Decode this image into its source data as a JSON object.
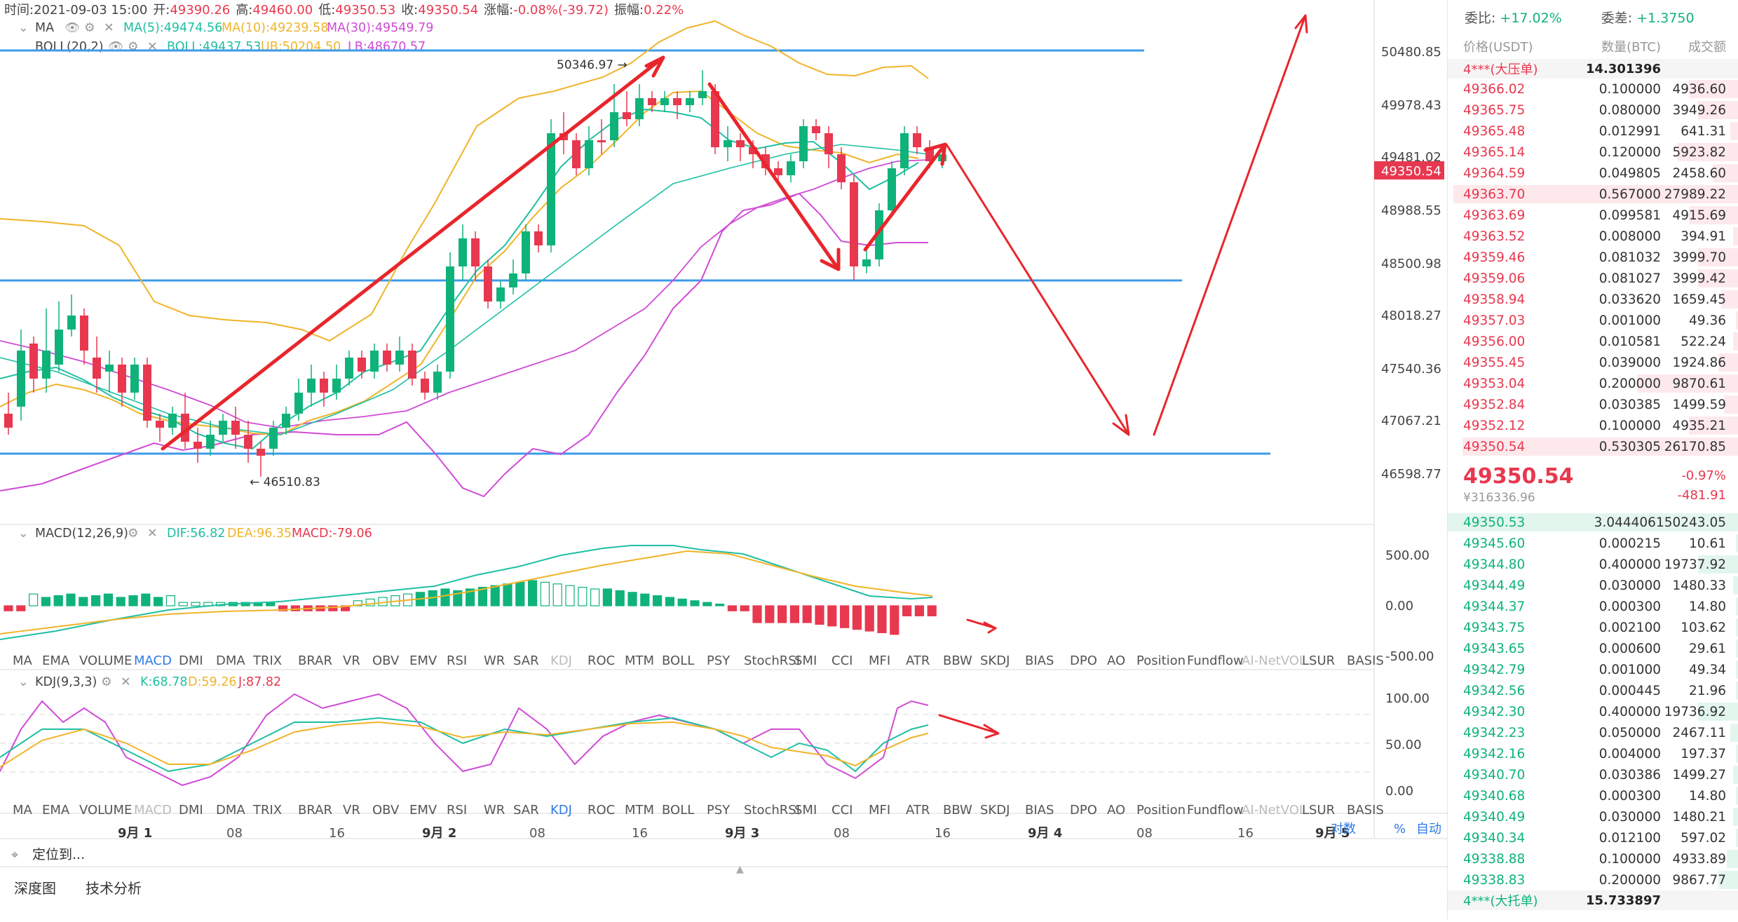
{
  "header": {
    "time_label": "时间:",
    "time": "2021-09-03 15:00",
    "open_label": "开:",
    "open": "49390.26",
    "high_label": "高:",
    "high": "49460.00",
    "low_label": "低:",
    "low": "49350.53",
    "close_label": "收:",
    "close": "49350.54",
    "change_label": "涨幅:",
    "change": "-0.08%(-39.72)",
    "amplitude_label": "振幅:",
    "amplitude": "0.22%"
  },
  "ma_legend": {
    "name": "MA",
    "ma5": "MA(5):49474.56",
    "ma10": "MA(10):49239.58",
    "ma30": "MA(30):49549.79"
  },
  "boll_legend": {
    "name": "BOLL(20,2)",
    "boll": "BOLL:49437.53",
    "ub": "UB:50204.50",
    "lb": "LB:48670.57"
  },
  "macd_legend": {
    "name": "MACD(12,26,9)",
    "dif": "DIF:56.82",
    "dea": "DEA:96.35",
    "macd": "MACD:-79.06"
  },
  "kdj_legend": {
    "name": "KDJ(9,3,3)",
    "k": "K:68.78",
    "d": "D:59.26",
    "j": "J:87.82"
  },
  "annotations": {
    "high_mark": "50346.97",
    "low_mark": "46510.83",
    "current_price_tag": "49350.54",
    "price_tag_partial": "49481.02"
  },
  "price_axis": [
    "50480.85",
    "49978.43",
    "49481.02",
    "48988.55",
    "48500.98",
    "48018.27",
    "47540.36",
    "47067.21",
    "46598.77"
  ],
  "macd_axis": [
    "500.00",
    "0.00",
    "-500.00"
  ],
  "kdj_axis": [
    "100.00",
    "50.00",
    "0.00"
  ],
  "indicators": [
    "MA",
    "EMA",
    "VOLUME",
    "MACD",
    "DMI",
    "DMA",
    "TRIX",
    "BRAR",
    "VR",
    "OBV",
    "EMV",
    "RSI",
    "WR",
    "SAR",
    "KDJ",
    "ROC",
    "MTM",
    "BOLL",
    "PSY",
    "StochRSI",
    "SMI",
    "CCI",
    "MFI",
    "ATR",
    "BBW",
    "SKDJ",
    "BIAS",
    "DPO",
    "AO",
    "Position",
    "Fundflow",
    "AI-NetVOL",
    "LSUR",
    "BASIS"
  ],
  "time_axis": [
    "9月 1",
    "08",
    "16",
    "9月 2",
    "08",
    "16",
    "9月 3",
    "08",
    "16",
    "9月 4",
    "08",
    "16",
    "9月 5"
  ],
  "axis_controls": {
    "log": "对数",
    "pct": "%",
    "auto": "自动"
  },
  "locate": "定位到...",
  "tabs": [
    "深度图",
    "技术分析"
  ],
  "orderbook": {
    "ratio_label": "委比:",
    "ratio": "+17.02%",
    "diff_label": "委差:",
    "diff": "+1.3750",
    "col_price": "价格(USDT)",
    "col_qty": "数量(BTC)",
    "col_total": "成交额",
    "ask_tag": "4***(大压单)",
    "ask_tag_qty": "14.301396",
    "asks": [
      {
        "price": "49366.02",
        "qty": "0.100000",
        "total": "4936.60",
        "depth": 0.17
      },
      {
        "price": "49365.75",
        "qty": "0.080000",
        "total": "3949.26",
        "depth": 0.14
      },
      {
        "price": "49365.48",
        "qty": "0.012991",
        "total": "641.31",
        "depth": 0.03
      },
      {
        "price": "49365.14",
        "qty": "0.120000",
        "total": "5923.82",
        "depth": 0.21
      },
      {
        "price": "49364.59",
        "qty": "0.049805",
        "total": "2458.60",
        "depth": 0.09
      },
      {
        "price": "49363.70",
        "qty": "0.567000",
        "total": "27989.22",
        "depth": 0.98
      },
      {
        "price": "49363.69",
        "qty": "0.099581",
        "total": "4915.69",
        "depth": 0.17
      },
      {
        "price": "49363.52",
        "qty": "0.008000",
        "total": "394.91",
        "depth": 0.02
      },
      {
        "price": "49359.46",
        "qty": "0.081032",
        "total": "3999.70",
        "depth": 0.14
      },
      {
        "price": "49359.06",
        "qty": "0.081027",
        "total": "3999.42",
        "depth": 0.14
      },
      {
        "price": "49358.94",
        "qty": "0.033620",
        "total": "1659.45",
        "depth": 0.06
      },
      {
        "price": "49357.03",
        "qty": "0.001000",
        "total": "49.36",
        "depth": 0.01
      },
      {
        "price": "49356.00",
        "qty": "0.010581",
        "total": "522.24",
        "depth": 0.02
      },
      {
        "price": "49355.45",
        "qty": "0.039000",
        "total": "1924.86",
        "depth": 0.07
      },
      {
        "price": "49353.04",
        "qty": "0.200000",
        "total": "9870.61",
        "depth": 0.35
      },
      {
        "price": "49352.84",
        "qty": "0.030385",
        "total": "1499.59",
        "depth": 0.05
      },
      {
        "price": "49352.12",
        "qty": "0.100000",
        "total": "4935.21",
        "depth": 0.17
      },
      {
        "price": "49350.54",
        "qty": "0.530305",
        "total": "26170.85",
        "depth": 0.95
      }
    ],
    "last_price": "49350.54",
    "last_cny": "¥316336.96",
    "last_pct": "-0.97%",
    "last_chg": "-481.91",
    "bids": [
      {
        "price": "49350.53",
        "qty": "3.044406",
        "total": "150243.05",
        "depth": 1.0
      },
      {
        "price": "49345.60",
        "qty": "0.000215",
        "total": "10.61",
        "depth": 0.01
      },
      {
        "price": "49344.80",
        "qty": "0.400000",
        "total": "19737.92",
        "depth": 0.14
      },
      {
        "price": "49344.49",
        "qty": "0.030000",
        "total": "1480.33",
        "depth": 0.02
      },
      {
        "price": "49344.37",
        "qty": "0.000300",
        "total": "14.80",
        "depth": 0.01
      },
      {
        "price": "49343.75",
        "qty": "0.002100",
        "total": "103.62",
        "depth": 0.01
      },
      {
        "price": "49343.65",
        "qty": "0.000600",
        "total": "29.61",
        "depth": 0.01
      },
      {
        "price": "49342.79",
        "qty": "0.001000",
        "total": "49.34",
        "depth": 0.01
      },
      {
        "price": "49342.56",
        "qty": "0.000445",
        "total": "21.96",
        "depth": 0.01
      },
      {
        "price": "49342.30",
        "qty": "0.400000",
        "total": "19736.92",
        "depth": 0.14
      },
      {
        "price": "49342.23",
        "qty": "0.050000",
        "total": "2467.11",
        "depth": 0.03
      },
      {
        "price": "49342.16",
        "qty": "0.004000",
        "total": "197.37",
        "depth": 0.01
      },
      {
        "price": "49340.70",
        "qty": "0.030386",
        "total": "1499.27",
        "depth": 0.02
      },
      {
        "price": "49340.68",
        "qty": "0.000300",
        "total": "14.80",
        "depth": 0.01
      },
      {
        "price": "49340.49",
        "qty": "0.030000",
        "total": "1480.21",
        "depth": 0.02
      },
      {
        "price": "49340.34",
        "qty": "0.012100",
        "total": "597.02",
        "depth": 0.01
      },
      {
        "price": "49338.88",
        "qty": "0.100000",
        "total": "4933.89",
        "depth": 0.04
      },
      {
        "price": "49338.83",
        "qty": "0.200000",
        "total": "9867.77",
        "depth": 0.07
      }
    ],
    "bid_tag": "4***(大托单)",
    "bid_tag_qty": "15.733897"
  },
  "colors": {
    "up": "#0fb37a",
    "down": "#e8384f",
    "accent": "#2f7ae5",
    "ma5": "#1fbfa3",
    "ma10": "#f0b429",
    "ma30": "#d04bd6",
    "hline": "#3c9be8"
  }
}
